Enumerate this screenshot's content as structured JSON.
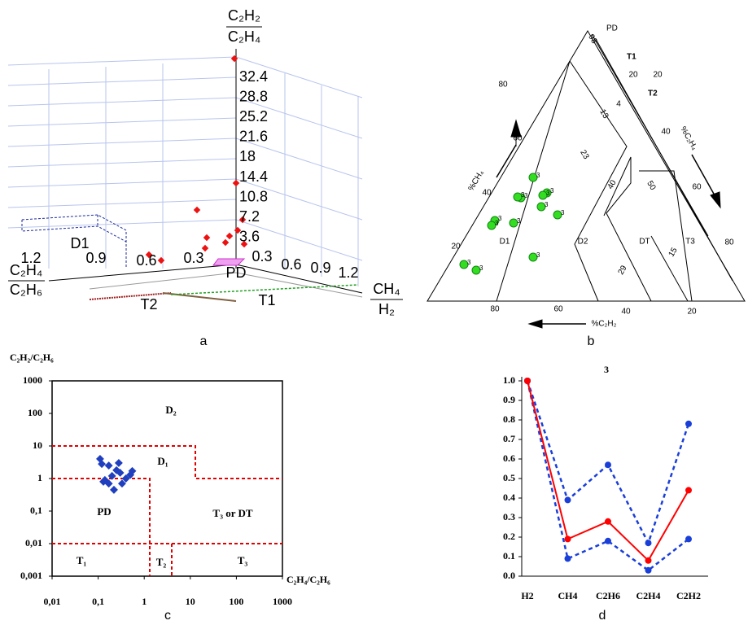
{
  "diagrams": {
    "a": {
      "caption": "a",
      "z_axis": {
        "numerator": "C₂H₂",
        "denominator": "C₂H₄"
      },
      "left_axis": {
        "numerator": "C₂H₄",
        "denominator": "C₂H₆"
      },
      "right_axis": {
        "numerator": "CH₄",
        "denominator": "H₂"
      },
      "z_ticks": [
        "32.4",
        "28.8",
        "25.2",
        "21.6",
        "18",
        "14.4",
        "10.8",
        "7.2",
        "3.6"
      ],
      "left_ticks": [
        "1.2",
        "0.9",
        "0.6",
        "0.3"
      ],
      "right_ticks": [
        "0.3",
        "0.6",
        "0.9",
        "1.2"
      ],
      "regions": [
        "D1",
        "PD",
        "T2",
        "T1"
      ]
    },
    "b": {
      "caption": "b",
      "corner_label": "PD",
      "regions": [
        "T1",
        "T2",
        "D1",
        "D2",
        "DT",
        "T3"
      ],
      "axis_labels": [
        "%CH₄",
        "%C₂H₄",
        "%C₂H₂"
      ],
      "left_ticks": [
        "80",
        "60",
        "40",
        "20"
      ],
      "bottom_ticks": [
        "80",
        "60",
        "40",
        "20"
      ],
      "right_ticks": [
        "20",
        "40",
        "60",
        "80"
      ],
      "inner_labels": [
        "98",
        "20",
        "4",
        "13",
        "23",
        "40",
        "50",
        "15",
        "29"
      ],
      "point_label": "3"
    }
  },
  "chart_data": [
    {
      "type": "scatter",
      "caption": "c",
      "ylabel": "C₂H₂/C₂H₆",
      "xlabel": "C₂H₄/C₂H₆",
      "log_scale": true,
      "color": "#1f3fbf",
      "x": [
        0.11,
        0.12,
        0.17,
        0.28,
        0.3,
        0.2,
        0.13,
        0.17,
        0.22,
        0.33,
        0.5,
        0.55,
        0.14,
        0.25,
        0.4
      ],
      "values": [
        4,
        2.8,
        2.5,
        3,
        1.5,
        1.2,
        0.8,
        0.7,
        0.45,
        0.7,
        1.3,
        1.7,
        0.9,
        1.8,
        1
      ],
      "xlim": [
        0.01,
        1000
      ],
      "ylim": [
        0.001,
        1000
      ],
      "xticks": [
        {
          "value": 0.01,
          "label": "0,01"
        },
        {
          "value": 0.1,
          "label": "0,1"
        },
        1,
        10,
        100,
        1000
      ],
      "yticks": [
        1000,
        100,
        10,
        1,
        {
          "value": 0.1,
          "label": "0,1"
        },
        {
          "value": 0.01,
          "label": "0,01"
        },
        {
          "value": 0.001,
          "label": "0,001"
        }
      ],
      "regions": [
        "D₂",
        "D₁",
        "PD",
        "T₃ or DT",
        "T₁",
        "T₂",
        "T₃"
      ]
    },
    {
      "type": "line",
      "title": "3",
      "caption": "d",
      "categories": [
        "H2",
        "CH4",
        "C2H6",
        "C2H4",
        "C2H2"
      ],
      "series": [
        {
          "color": "#1a3fd9",
          "style": "dashed",
          "values": [
            1,
            0.39,
            0.57,
            0.17,
            0.78
          ]
        },
        {
          "color": "#1a3fd9",
          "style": "dashed",
          "values": [
            1,
            0.09,
            0.18,
            0.03,
            0.19
          ]
        },
        {
          "color": "#ff0000",
          "style": "solid",
          "values": [
            1,
            0.19,
            0.28,
            0.08,
            0.44
          ]
        }
      ],
      "ylim": [
        0,
        1
      ],
      "yticks": [
        {
          "value": 1,
          "label": "1.0"
        },
        0.9,
        0.8,
        0.7,
        0.6,
        0.5,
        0.4,
        0.3,
        0.2,
        0.1,
        {
          "value": 0,
          "label": "0.0"
        }
      ]
    }
  ]
}
